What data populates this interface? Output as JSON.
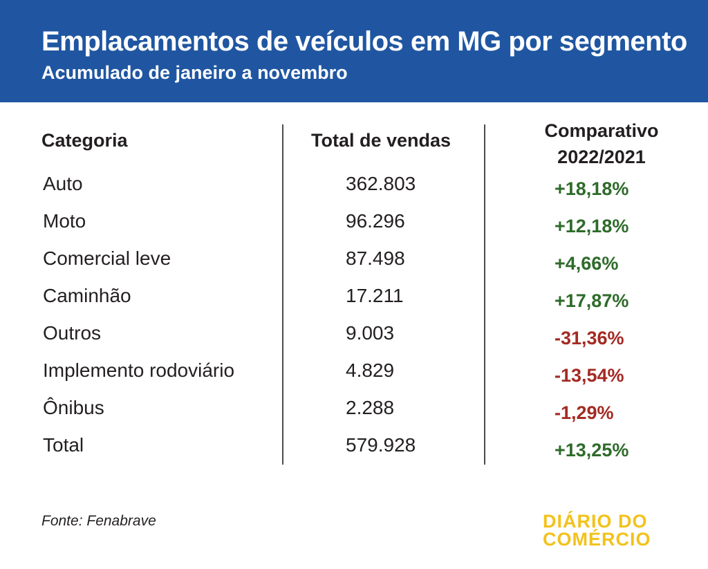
{
  "header": {
    "title": "Emplacamentos de veículos em MG por segmento",
    "subtitle": "Acumulado de janeiro a novembro"
  },
  "columns": {
    "category": "Categoria",
    "total": "Total de vendas",
    "comparison_line1": "Comparativo",
    "comparison_line2": "2022/2021"
  },
  "rows": [
    {
      "category": "Auto",
      "total": "362.803",
      "comparison": "+18,18%",
      "trend": "positive"
    },
    {
      "category": "Moto",
      "total": "96.296",
      "comparison": "+12,18%",
      "trend": "positive"
    },
    {
      "category": "Comercial leve",
      "total": "87.498",
      "comparison": "+4,66%",
      "trend": "positive"
    },
    {
      "category": "Caminhão",
      "total": "17.211",
      "comparison": "+17,87%",
      "trend": "positive"
    },
    {
      "category": "Outros",
      "total": "9.003",
      "comparison": "-31,36%",
      "trend": "negative"
    },
    {
      "category": "Implemento rodoviário",
      "total": "4.829",
      "comparison": "-13,54%",
      "trend": "negative"
    },
    {
      "category": "Ônibus",
      "total": "2.288",
      "comparison": "-1,29%",
      "trend": "negative"
    },
    {
      "category": "Total",
      "total": "579.928",
      "comparison": "+13,25%",
      "trend": "positive"
    }
  ],
  "footer": {
    "source": "Fonte: Fenabrave",
    "logo_line1": "DIÁRIO DO",
    "logo_line2": "COMÉRCIO"
  },
  "colors": {
    "header_bg": "#2056a1",
    "positive": "#2e6b2a",
    "negative": "#a32a23",
    "logo": "#f2c21b"
  }
}
